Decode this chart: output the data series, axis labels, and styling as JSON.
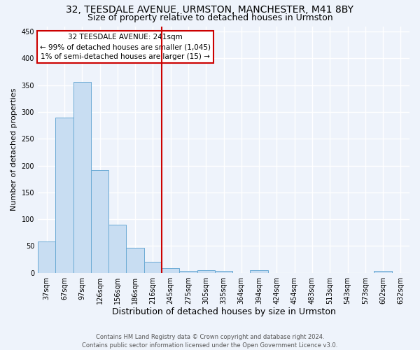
{
  "title": "32, TEESDALE AVENUE, URMSTON, MANCHESTER, M41 8BY",
  "subtitle": "Size of property relative to detached houses in Urmston",
  "xlabel": "Distribution of detached houses by size in Urmston",
  "ylabel": "Number of detached properties",
  "categories": [
    "37sqm",
    "67sqm",
    "97sqm",
    "126sqm",
    "156sqm",
    "186sqm",
    "216sqm",
    "245sqm",
    "275sqm",
    "305sqm",
    "335sqm",
    "364sqm",
    "394sqm",
    "424sqm",
    "454sqm",
    "483sqm",
    "513sqm",
    "543sqm",
    "573sqm",
    "602sqm",
    "632sqm"
  ],
  "values": [
    58,
    290,
    356,
    192,
    90,
    47,
    21,
    9,
    4,
    5,
    4,
    0,
    5,
    0,
    0,
    0,
    0,
    0,
    0,
    4,
    0
  ],
  "bar_color": "#c8ddf2",
  "bar_edge_color": "#6aaad4",
  "red_line_index": 7,
  "annotation_text": "32 TEESDALE AVENUE: 241sqm\n← 99% of detached houses are smaller (1,045)\n1% of semi-detached houses are larger (15) →",
  "annotation_box_color": "#ffffff",
  "annotation_box_edge_color": "#cc0000",
  "ylim": [
    0,
    460
  ],
  "yticks": [
    0,
    50,
    100,
    150,
    200,
    250,
    300,
    350,
    400,
    450
  ],
  "fig_bg_color": "#eef3fb",
  "ax_bg_color": "#eef3fb",
  "grid_color": "#ffffff",
  "footer_line1": "Contains HM Land Registry data © Crown copyright and database right 2024.",
  "footer_line2": "Contains public sector information licensed under the Open Government Licence v3.0.",
  "title_fontsize": 10,
  "subtitle_fontsize": 9,
  "xlabel_fontsize": 9,
  "ylabel_fontsize": 8,
  "tick_fontsize": 7,
  "annotation_fontsize": 7.5,
  "footer_fontsize": 6
}
